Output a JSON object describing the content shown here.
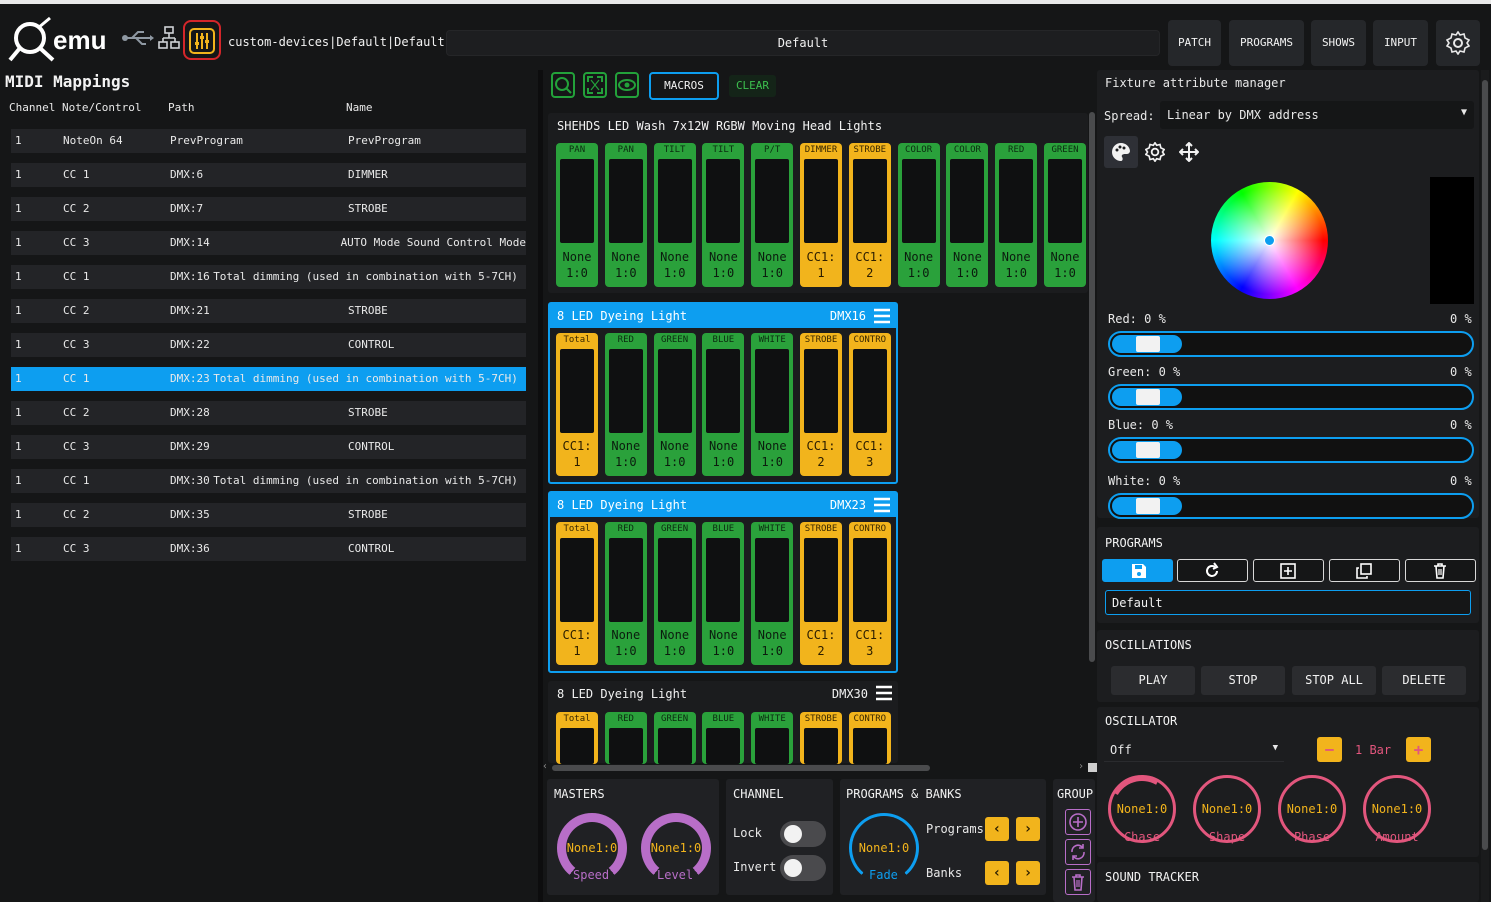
{
  "app": {
    "logo_text": "emu",
    "device_path": "custom-devices|Default|Default",
    "program_name": "Default",
    "nav": [
      "PATCH",
      "PROGRAMS",
      "SHOWS",
      "INPUT"
    ],
    "icons": {
      "usb": "usb-icon",
      "network": "network-icon",
      "mixer": "mixer-icon",
      "settings": "gear-icon"
    }
  },
  "midi": {
    "title": "MIDI Mappings",
    "headers": [
      "Channel",
      "Note/Control",
      "Path",
      "Name"
    ],
    "rows": [
      {
        "channel": "1",
        "control": "NoteOn 64",
        "path": "PrevProgram",
        "name": "PrevProgram"
      },
      {
        "channel": "1",
        "control": "CC 1",
        "path": "DMX:6",
        "name": "DIMMER"
      },
      {
        "channel": "1",
        "control": "CC 2",
        "path": "DMX:7",
        "name": "STROBE"
      },
      {
        "channel": "1",
        "control": "CC 3",
        "path": "DMX:14",
        "name": "AUTO Mode Sound Control Mode"
      },
      {
        "channel": "1",
        "control": "CC 1",
        "path": "DMX:16",
        "name": "Total dimming (used in combination with 5-7CH)"
      },
      {
        "channel": "1",
        "control": "CC 2",
        "path": "DMX:21",
        "name": "STROBE"
      },
      {
        "channel": "1",
        "control": "CC 3",
        "path": "DMX:22",
        "name": "CONTROL"
      },
      {
        "channel": "1",
        "control": "CC 1",
        "path": "DMX:23",
        "name": "Total dimming (used in combination with 5-7CH)",
        "selected": true
      },
      {
        "channel": "1",
        "control": "CC 2",
        "path": "DMX:28",
        "name": "STROBE"
      },
      {
        "channel": "1",
        "control": "CC 3",
        "path": "DMX:29",
        "name": "CONTROL"
      },
      {
        "channel": "1",
        "control": "CC 1",
        "path": "DMX:30",
        "name": "Total dimming (used in combination with 5-7CH)"
      },
      {
        "channel": "1",
        "control": "CC 2",
        "path": "DMX:35",
        "name": "STROBE"
      },
      {
        "channel": "1",
        "control": "CC 3",
        "path": "DMX:36",
        "name": "CONTROL"
      }
    ]
  },
  "toolbar": {
    "macros_label": "MACROS",
    "clear_label": "CLEAR",
    "icons": [
      "zoom-icon",
      "fullscreen-icon",
      "eye-icon"
    ]
  },
  "fixtures": [
    {
      "name": "SHEHDS LED Wash 7x12W RGBW Moving Head Lights",
      "dmx": "",
      "channels": [
        {
          "label": "PAN",
          "v1": "None",
          "v2": "1:0",
          "active": false
        },
        {
          "label": "PAN",
          "v1": "None",
          "v2": "1:0",
          "active": false
        },
        {
          "label": "TILT",
          "v1": "None",
          "v2": "1:0",
          "active": false
        },
        {
          "label": "TILT",
          "v1": "None",
          "v2": "1:0",
          "active": false
        },
        {
          "label": "P/T",
          "v1": "None",
          "v2": "1:0",
          "active": false
        },
        {
          "label": "DIMMER",
          "v1": "CC1:",
          "v2": "1",
          "active": true
        },
        {
          "label": "STROBE",
          "v1": "CC1:",
          "v2": "2",
          "active": true
        },
        {
          "label": "COLOR",
          "v1": "None",
          "v2": "1:0",
          "active": false
        },
        {
          "label": "COLOR",
          "v1": "None",
          "v2": "1:0",
          "active": false
        },
        {
          "label": "RED",
          "v1": "None",
          "v2": "1:0",
          "active": false
        },
        {
          "label": "GREEN",
          "v1": "None",
          "v2": "1:0",
          "active": false
        }
      ]
    },
    {
      "name": "8 LED Dyeing Light",
      "dmx": "DMX16",
      "channels": [
        {
          "label": "Total",
          "v1": "CC1:",
          "v2": "1",
          "active": true
        },
        {
          "label": "RED",
          "v1": "None",
          "v2": "1:0",
          "active": false
        },
        {
          "label": "GREEN",
          "v1": "None",
          "v2": "1:0",
          "active": false
        },
        {
          "label": "BLUE",
          "v1": "None",
          "v2": "1:0",
          "active": false
        },
        {
          "label": "WHITE",
          "v1": "None",
          "v2": "1:0",
          "active": false
        },
        {
          "label": "STROBE",
          "v1": "CC1:",
          "v2": "2",
          "active": true
        },
        {
          "label": "CONTRO",
          "v1": "CC1:",
          "v2": "3",
          "active": true
        }
      ]
    },
    {
      "name": "8 LED Dyeing Light",
      "dmx": "DMX23",
      "channels": [
        {
          "label": "Total",
          "v1": "CC1:",
          "v2": "1",
          "active": true
        },
        {
          "label": "RED",
          "v1": "None",
          "v2": "1:0",
          "active": false
        },
        {
          "label": "GREEN",
          "v1": "None",
          "v2": "1:0",
          "active": false
        },
        {
          "label": "BLUE",
          "v1": "None",
          "v2": "1:0",
          "active": false
        },
        {
          "label": "WHITE",
          "v1": "None",
          "v2": "1:0",
          "active": false
        },
        {
          "label": "STROBE",
          "v1": "CC1:",
          "v2": "2",
          "active": true
        },
        {
          "label": "CONTRO",
          "v1": "CC1:",
          "v2": "3",
          "active": true
        }
      ]
    },
    {
      "name": "8 LED Dyeing Light",
      "dmx": "DMX30",
      "channels": [
        {
          "label": "Total",
          "active": true
        },
        {
          "label": "RED",
          "active": false
        },
        {
          "label": "GREEN",
          "active": false
        },
        {
          "label": "BLUE",
          "active": false
        },
        {
          "label": "WHITE",
          "active": false
        },
        {
          "label": "STROBE",
          "active": true
        },
        {
          "label": "CONTRO",
          "active": true
        }
      ]
    }
  ],
  "bottom": {
    "masters": {
      "title": "MASTERS",
      "speed_value": "None1:0",
      "speed_label": "Speed",
      "level_value": "None1:0",
      "level_label": "Level"
    },
    "channel": {
      "title": "CHANNEL",
      "lock_label": "Lock",
      "invert_label": "Invert"
    },
    "programs_banks": {
      "title": "PROGRAMS & BANKS",
      "fade_value": "None1:0",
      "fade_label": "Fade",
      "programs_label": "Programs",
      "banks_label": "Banks"
    },
    "group": {
      "title": "GROUP"
    }
  },
  "fixture_manager": {
    "title": "Fixture attribute manager",
    "spread_label": "Spread:",
    "spread_value": "Linear by DMX address",
    "sliders": [
      {
        "label": "Red:",
        "value": "0 %",
        "right": "0 %"
      },
      {
        "label": "Green:",
        "value": "0 %",
        "right": "0 %"
      },
      {
        "label": "Blue:",
        "value": "0 %",
        "right": "0 %"
      },
      {
        "label": "White:",
        "value": "0 %",
        "right": "0 %"
      }
    ]
  },
  "programs_panel": {
    "title": "PROGRAMS",
    "name_value": "Default"
  },
  "oscillations": {
    "title": "OSCILLATIONS",
    "buttons": [
      "PLAY",
      "STOP",
      "STOP ALL",
      "DELETE"
    ]
  },
  "oscillator": {
    "title": "OSCILLATOR",
    "mode": "Off",
    "bar_value": "1 Bar",
    "knobs": [
      {
        "value": "None1:0",
        "label": "Chase"
      },
      {
        "value": "None1:0",
        "label": "Shape"
      },
      {
        "value": "None1:0",
        "label": "Phase"
      },
      {
        "value": "None1:0",
        "label": "Amount"
      }
    ]
  },
  "sound_tracker": {
    "title": "SOUND TRACKER"
  },
  "colors": {
    "accent": "#0d9ef0",
    "green": "#2aa13b",
    "yellow": "#f2b41c",
    "purple": "#b86ec8",
    "pink": "#e2567d"
  }
}
